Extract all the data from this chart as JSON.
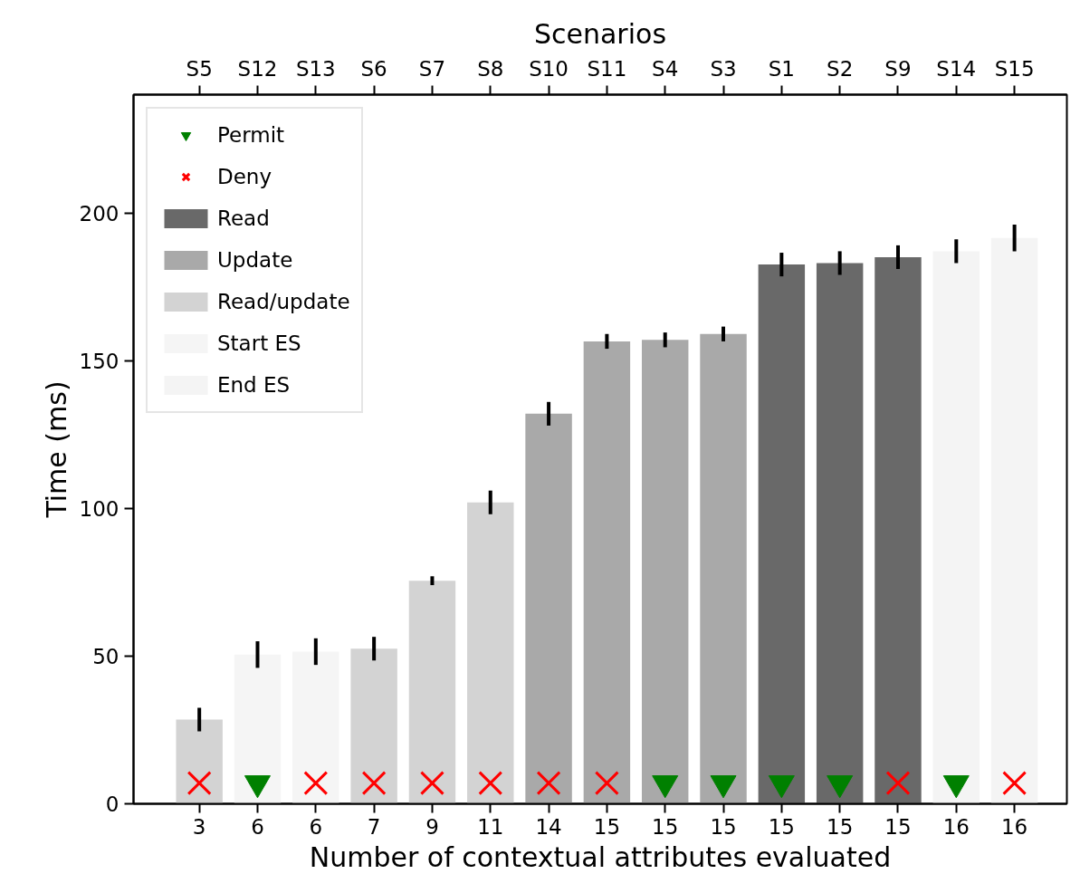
{
  "chart_data": {
    "type": "bar",
    "categories": [
      "S5",
      "S12",
      "S13",
      "S6",
      "S7",
      "S8",
      "S10",
      "S11",
      "S4",
      "S3",
      "S1",
      "S2",
      "S9",
      "S14",
      "S15"
    ],
    "annotations": [
      {
        "text": "3",
        "x": "S5"
      },
      {
        "text": "6",
        "x": "S12"
      },
      {
        "text": "6",
        "x": "S13"
      },
      {
        "text": "7",
        "x": "S6"
      },
      {
        "text": "9",
        "x": "S7"
      },
      {
        "text": "11",
        "x": "S8"
      },
      {
        "text": "14",
        "x": "S10"
      },
      {
        "text": "15",
        "x": "S11"
      },
      {
        "text": "15",
        "x": "S4"
      },
      {
        "text": "15",
        "x": "S3"
      },
      {
        "text": "15",
        "x": "S1"
      },
      {
        "text": "15",
        "x": "S2"
      },
      {
        "text": "15",
        "x": "S9"
      },
      {
        "text": "16",
        "x": "S14"
      },
      {
        "text": "16",
        "x": "S15"
      }
    ],
    "xlabel": "Number of contextual attributes evaluated",
    "ylabel": "Time (ms)",
    "x2label": "Scenarios",
    "ylim": [
      0,
      240
    ],
    "yticks": [
      0,
      50,
      100,
      150,
      200
    ],
    "grid": false,
    "legend": "top left",
    "series": [
      {
        "name": "Permit",
        "type": "scatter",
        "marker": "triangle",
        "color": "#008000",
        "values": [
          null,
          7,
          null,
          null,
          null,
          null,
          null,
          null,
          7,
          7,
          7,
          7,
          null,
          7,
          null
        ]
      },
      {
        "name": "Deny",
        "type": "scatter",
        "marker": "cross",
        "color": "#ff0000",
        "values": [
          7,
          null,
          7,
          7,
          7,
          7,
          7,
          7,
          null,
          null,
          null,
          null,
          7,
          null,
          7
        ]
      },
      {
        "name": "Read",
        "color": "#696969",
        "values": [
          null,
          null,
          null,
          null,
          null,
          null,
          null,
          null,
          null,
          null,
          182.5,
          183,
          185,
          null,
          null
        ],
        "errors": [
          null,
          null,
          null,
          null,
          null,
          null,
          null,
          null,
          null,
          null,
          4,
          4,
          4,
          null,
          null
        ]
      },
      {
        "name": "Update",
        "color": "#a9a9a9",
        "values": [
          null,
          null,
          null,
          null,
          null,
          null,
          132,
          156.5,
          157,
          159,
          null,
          null,
          null,
          null,
          null
        ],
        "errors": [
          null,
          null,
          null,
          null,
          null,
          null,
          4,
          2.5,
          2.5,
          2.5,
          null,
          null,
          null,
          null,
          null
        ]
      },
      {
        "name": "Read/update",
        "color": "#d3d3d3",
        "values": [
          28.5,
          null,
          null,
          52.5,
          75.5,
          102,
          null,
          null,
          null,
          null,
          null,
          null,
          null,
          null,
          null
        ],
        "errors": [
          4,
          null,
          null,
          4,
          1.5,
          4,
          null,
          null,
          null,
          null,
          null,
          null,
          null,
          null,
          null
        ]
      },
      {
        "name": "Start ES",
        "color": "#f5f5f5",
        "values": [
          null,
          50.5,
          51.5,
          null,
          null,
          null,
          null,
          null,
          null,
          null,
          null,
          null,
          null,
          null,
          null
        ],
        "errors": [
          null,
          4.5,
          4.5,
          null,
          null,
          null,
          null,
          null,
          null,
          null,
          null,
          null,
          null,
          null,
          null
        ]
      },
      {
        "name": "End ES",
        "color": "#f4f4f4",
        "values": [
          null,
          null,
          null,
          null,
          null,
          null,
          null,
          null,
          null,
          null,
          null,
          null,
          null,
          187,
          191.5
        ],
        "errors": [
          null,
          null,
          null,
          null,
          null,
          null,
          null,
          null,
          null,
          null,
          null,
          null,
          null,
          4,
          4.5
        ]
      }
    ]
  }
}
